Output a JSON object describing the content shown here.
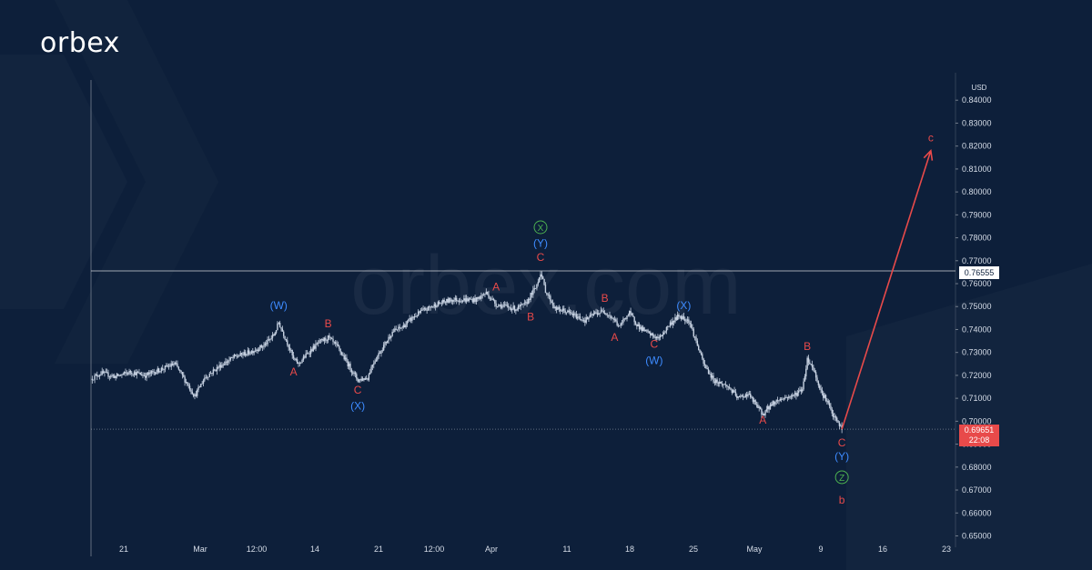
{
  "brand": {
    "name": "orbex",
    "watermark": "orbex.com"
  },
  "colors": {
    "background": "#0d1f3a",
    "candle": "#c7d2e2",
    "red": "#e84a4a",
    "blue": "#3d8bff",
    "green": "#4caf50",
    "axis_text": "#d6dde8"
  },
  "chart_data": {
    "type": "candlestick",
    "currency_label": "USD",
    "ylim": [
      0.65,
      0.85
    ],
    "y_ticks": [
      "0.84000",
      "0.83000",
      "0.82000",
      "0.81000",
      "0.80000",
      "0.79000",
      "0.78000",
      "0.77000",
      "0.76000",
      "0.75000",
      "0.74000",
      "0.73000",
      "0.72000",
      "0.71000",
      "0.70000",
      "0.69000",
      "0.68000",
      "0.67000",
      "0.66000",
      "0.65000"
    ],
    "y_tick_values": [
      0.84,
      0.83,
      0.82,
      0.81,
      0.8,
      0.79,
      0.78,
      0.77,
      0.76,
      0.75,
      0.74,
      0.73,
      0.72,
      0.71,
      0.7,
      0.69,
      0.68,
      0.67,
      0.66,
      0.65
    ],
    "x_labels": [
      "21",
      "Mar",
      "12:00",
      "14",
      "21",
      "12:00",
      "Apr",
      "11",
      "18",
      "25",
      "May",
      "9",
      "16",
      "23"
    ],
    "horizontal_line": {
      "value": 0.76555,
      "label": "0.76555"
    },
    "current_price": {
      "value": 0.69651,
      "label": "0.69651",
      "countdown": "22:08"
    },
    "price_path": [
      [
        0,
        0.7185
      ],
      [
        2,
        0.721
      ],
      [
        5,
        0.7195
      ],
      [
        8,
        0.7215
      ],
      [
        11,
        0.72
      ],
      [
        14,
        0.7225
      ],
      [
        17,
        0.725
      ],
      [
        19,
        0.718
      ],
      [
        21,
        0.711
      ],
      [
        23,
        0.719
      ],
      [
        26,
        0.724
      ],
      [
        29,
        0.728
      ],
      [
        32,
        0.73
      ],
      [
        35,
        0.733
      ],
      [
        37,
        0.7375
      ],
      [
        38,
        0.743
      ],
      [
        40,
        0.733
      ],
      [
        41,
        0.727
      ],
      [
        42,
        0.725
      ],
      [
        44,
        0.73
      ],
      [
        46,
        0.734
      ],
      [
        48,
        0.7365
      ],
      [
        50,
        0.732
      ],
      [
        52,
        0.725
      ],
      [
        54,
        0.718
      ],
      [
        56,
        0.719
      ],
      [
        57,
        0.725
      ],
      [
        59,
        0.732
      ],
      [
        61,
        0.739
      ],
      [
        63,
        0.741
      ],
      [
        65,
        0.745
      ],
      [
        67,
        0.748
      ],
      [
        70,
        0.751
      ],
      [
        73,
        0.753
      ],
      [
        76,
        0.753
      ],
      [
        78,
        0.753
      ],
      [
        80,
        0.756
      ],
      [
        82,
        0.751
      ],
      [
        84,
        0.75
      ],
      [
        86,
        0.749
      ],
      [
        88,
        0.751
      ],
      [
        89,
        0.755
      ],
      [
        90,
        0.758
      ],
      [
        91,
        0.765
      ],
      [
        92,
        0.757
      ],
      [
        94,
        0.749
      ],
      [
        96,
        0.748
      ],
      [
        98,
        0.746
      ],
      [
        100,
        0.744
      ],
      [
        102,
        0.747
      ],
      [
        104,
        0.748
      ],
      [
        106,
        0.744
      ],
      [
        107,
        0.741
      ],
      [
        108,
        0.745
      ],
      [
        109,
        0.747
      ],
      [
        111,
        0.741
      ],
      [
        113,
        0.738
      ],
      [
        114,
        0.737
      ],
      [
        115,
        0.736
      ],
      [
        117,
        0.742
      ],
      [
        119,
        0.746
      ],
      [
        121,
        0.744
      ],
      [
        122,
        0.738
      ],
      [
        124,
        0.725
      ],
      [
        126,
        0.718
      ],
      [
        129,
        0.715
      ],
      [
        131,
        0.71
      ],
      [
        133,
        0.712
      ],
      [
        135,
        0.706
      ],
      [
        136,
        0.703
      ],
      [
        138,
        0.708
      ],
      [
        140,
        0.71
      ],
      [
        142,
        0.711
      ],
      [
        144,
        0.714
      ],
      [
        145,
        0.727
      ],
      [
        146,
        0.724
      ],
      [
        148,
        0.712
      ],
      [
        149,
        0.709
      ],
      [
        150,
        0.703
      ],
      [
        151,
        0.7
      ],
      [
        152,
        0.6965
      ]
    ],
    "projection": {
      "from": [
        152,
        0.6965
      ],
      "to": [
        170,
        0.818
      ]
    },
    "annotations": [
      {
        "text": "(W)",
        "color": "blue",
        "x": 38,
        "y": 0.749
      },
      {
        "text": "A",
        "color": "red",
        "x": 41,
        "y": 0.72
      },
      {
        "text": "B",
        "color": "red",
        "x": 48,
        "y": 0.741
      },
      {
        "text": "C",
        "color": "red",
        "x": 54,
        "y": 0.712
      },
      {
        "text": "(X)",
        "color": "blue",
        "x": 54,
        "y": 0.705
      },
      {
        "text": "A",
        "color": "red",
        "x": 82,
        "y": 0.757
      },
      {
        "text": "B",
        "color": "red",
        "x": 89,
        "y": 0.744
      },
      {
        "text": "C",
        "color": "red",
        "x": 91,
        "y": 0.77
      },
      {
        "text": "(Y)",
        "color": "blue",
        "x": 91,
        "y": 0.776
      },
      {
        "text": "X",
        "color": "green",
        "x": 91,
        "y": 0.783,
        "circled": true
      },
      {
        "text": "B",
        "color": "red",
        "x": 104,
        "y": 0.752
      },
      {
        "text": "A",
        "color": "red",
        "x": 106,
        "y": 0.735
      },
      {
        "text": "C",
        "color": "red",
        "x": 114,
        "y": 0.732
      },
      {
        "text": "(W)",
        "color": "blue",
        "x": 114,
        "y": 0.725
      },
      {
        "text": "(X)",
        "color": "blue",
        "x": 120,
        "y": 0.749
      },
      {
        "text": "A",
        "color": "red",
        "x": 136,
        "y": 0.699
      },
      {
        "text": "B",
        "color": "red",
        "x": 145,
        "y": 0.731
      },
      {
        "text": "C",
        "color": "red",
        "x": 152,
        "y": 0.689
      },
      {
        "text": "(Y)",
        "color": "blue",
        "x": 152,
        "y": 0.683
      },
      {
        "text": "Z",
        "color": "green",
        "x": 152,
        "y": 0.674,
        "circled": true
      },
      {
        "text": "b",
        "color": "red",
        "x": 152,
        "y": 0.664
      },
      {
        "text": "c",
        "color": "red",
        "x": 170,
        "y": 0.822
      }
    ]
  }
}
